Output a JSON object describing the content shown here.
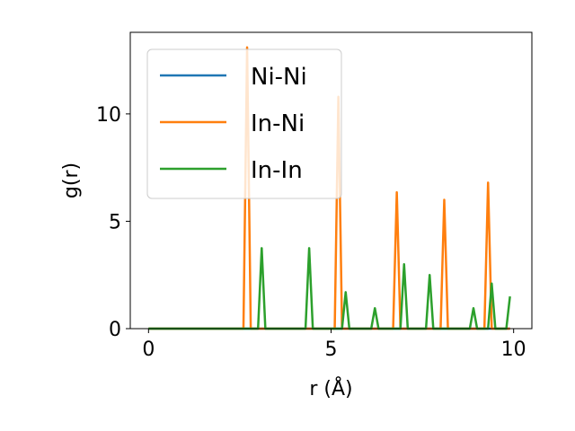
{
  "chart_data": {
    "type": "line",
    "title": "",
    "xlabel": "r (Å)",
    "ylabel": "g(r)",
    "xlim": [
      -0.5,
      10.5
    ],
    "ylim": [
      0,
      13.8
    ],
    "xticks": [
      0,
      5,
      10
    ],
    "yticks": [
      0,
      5,
      10
    ],
    "xtick_labels": [
      "0",
      "5",
      "10"
    ],
    "ytick_labels": [
      "0",
      "5",
      "10"
    ],
    "grid": false,
    "legend_position": "top-left",
    "series": [
      {
        "name": "Ni-Ni",
        "color": "#1f77b4",
        "x": [
          0,
          9.9
        ],
        "y": [
          0,
          0
        ]
      },
      {
        "name": "In-Ni",
        "color": "#ff7f0e",
        "x": [
          0,
          2.6,
          2.7,
          2.8,
          5.1,
          5.2,
          5.3,
          6.7,
          6.8,
          6.9,
          8.0,
          8.1,
          8.2,
          9.2,
          9.3,
          9.4,
          9.9
        ],
        "y": [
          0,
          0,
          13.1,
          0,
          0,
          10.8,
          0,
          0,
          6.35,
          0,
          0,
          6.0,
          0,
          0,
          6.8,
          0,
          0
        ]
      },
      {
        "name": "In-In",
        "color": "#2ca02c",
        "x": [
          0,
          3.0,
          3.1,
          3.2,
          4.3,
          4.4,
          4.5,
          5.3,
          5.4,
          5.5,
          6.1,
          6.2,
          6.3,
          6.9,
          7.0,
          7.1,
          7.6,
          7.7,
          7.8,
          8.8,
          8.9,
          9.0,
          9.3,
          9.4,
          9.5,
          9.8,
          9.9
        ],
        "y": [
          0,
          0,
          3.75,
          0,
          0,
          3.75,
          0,
          0,
          1.7,
          0,
          0,
          0.95,
          0,
          0,
          3.0,
          0,
          0,
          2.5,
          0,
          0,
          0.95,
          0,
          0,
          2.1,
          0,
          0,
          1.5
        ]
      }
    ]
  }
}
